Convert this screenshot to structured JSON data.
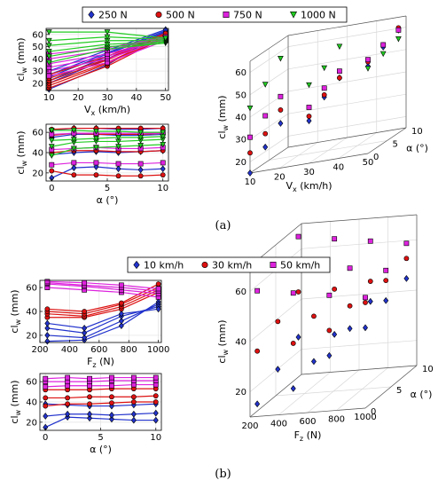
{
  "caption_a": "(a)",
  "caption_b": "(b)",
  "chart_data": [
    {
      "panel": "a",
      "chart": "clw-vs-Vx",
      "type": "line",
      "xlabel": "V_x (km/h)",
      "ylabel": "cl_w (mm)",
      "xlim": [
        9,
        51
      ],
      "ylim": [
        14,
        65
      ],
      "xticks": [
        10,
        20,
        30,
        40,
        50
      ],
      "yticks": [
        20,
        30,
        40,
        50,
        60
      ],
      "x": [
        10,
        30,
        50
      ],
      "legend": {
        "position": "top",
        "entries": [
          "250 N",
          "500 N",
          "750 N",
          "1000 N"
        ]
      },
      "series": [
        {
          "name": "250 N",
          "color": "#2233cc",
          "marker": "diamond",
          "lines": [
            [
              15,
              35,
              63
            ],
            [
              20,
              40,
              62
            ],
            [
              22,
              42,
              60
            ],
            [
              25,
              44,
              62
            ],
            [
              27,
              45,
              63
            ],
            [
              30,
              47,
              64
            ]
          ]
        },
        {
          "name": "500 N",
          "color": "#dd1111",
          "marker": "circle",
          "lines": [
            [
              16,
              34,
              58
            ],
            [
              18,
              36,
              58
            ],
            [
              20,
              37,
              59
            ],
            [
              22,
              39,
              60
            ],
            [
              24,
              40,
              60
            ],
            [
              27,
              42,
              61
            ]
          ]
        },
        {
          "name": "750 N",
          "color": "#dd22dd",
          "marker": "square",
          "lines": [
            [
              26,
              37,
              55
            ],
            [
              30,
              40,
              56
            ],
            [
              33,
              42,
              57
            ],
            [
              36,
              44,
              57
            ],
            [
              40,
              47,
              58
            ],
            [
              44,
              49,
              58
            ]
          ]
        },
        {
          "name": "1000 N",
          "color": "#22cc22",
          "marker": "triangle",
          "lines": [
            [
              37,
              48,
              53
            ],
            [
              42,
              50,
              53
            ],
            [
              46,
              52,
              54
            ],
            [
              51,
              55,
              55
            ],
            [
              55,
              58,
              56
            ],
            [
              62,
              62,
              57
            ]
          ]
        }
      ]
    },
    {
      "panel": "a",
      "chart": "clw-vs-alpha",
      "type": "line",
      "xlabel": "α (°)",
      "ylabel": "cl_w (mm)",
      "xlim": [
        -0.5,
        10.5
      ],
      "ylim": [
        12,
        68
      ],
      "xticks": [
        0,
        5,
        10
      ],
      "yticks": [
        20,
        40,
        60
      ],
      "x": [
        0,
        2,
        4,
        6,
        8,
        10
      ],
      "series": [
        {
          "name": "250 N",
          "color": "#2233cc",
          "marker": "diamond",
          "lines": [
            [
              15,
              25,
              26,
              24,
              23,
              24
            ],
            [
              38,
              40,
              41,
              40,
              41,
              42
            ],
            [
              55,
              58,
              58,
              57,
              57,
              58
            ],
            [
              62,
              64,
              64,
              63,
              63,
              64
            ]
          ]
        },
        {
          "name": "500 N",
          "color": "#dd1111",
          "marker": "circle",
          "lines": [
            [
              22,
              18,
              18,
              17,
              17,
              18
            ],
            [
              40,
              42,
              42,
              41,
              41,
              42
            ],
            [
              57,
              59,
              58,
              58,
              58,
              59
            ],
            [
              63,
              64,
              64,
              64,
              64,
              64
            ]
          ]
        },
        {
          "name": "750 N",
          "color": "#dd22dd",
          "marker": "square",
          "lines": [
            [
              28,
              30,
              30,
              29,
              29,
              30
            ],
            [
              43,
              44,
              45,
              44,
              44,
              45
            ],
            [
              58,
              59,
              59,
              59,
              59,
              59
            ]
          ]
        },
        {
          "name": "1000 N",
          "color": "#22cc22",
          "marker": "triangle",
          "lines": [
            [
              37,
              44,
              45,
              46,
              47,
              48
            ],
            [
              46,
              50,
              51,
              51,
              52,
              53
            ],
            [
              52,
              53,
              54,
              55,
              55,
              56
            ],
            [
              62,
              62,
              61,
              61,
              60,
              60
            ]
          ]
        }
      ]
    },
    {
      "panel": "a",
      "chart": "clw-3d-Vx-alpha",
      "type": "scatter",
      "xlabel": "V_x (km/h)",
      "ylabel": "α (°)",
      "zlabel": "cl_w (mm)",
      "xlim": [
        10,
        50
      ],
      "ylim": [
        0,
        10
      ],
      "zlim": [
        15,
        65
      ],
      "xticks": [
        10,
        20,
        30,
        40,
        50
      ],
      "yticks": [
        0,
        5,
        10
      ],
      "zticks": [
        20,
        30,
        40,
        50,
        60
      ],
      "series": [
        {
          "name": "250 N",
          "color": "#2233cc",
          "marker": "diamond",
          "points": [
            [
              10,
              0,
              15
            ],
            [
              10,
              4,
              22
            ],
            [
              10,
              8,
              28
            ],
            [
              30,
              0,
              34
            ],
            [
              30,
              4,
              40
            ],
            [
              30,
              8,
              44
            ],
            [
              50,
              0,
              54
            ],
            [
              50,
              4,
              58
            ],
            [
              50,
              8,
              61
            ]
          ]
        },
        {
          "name": "500 N",
          "color": "#dd1111",
          "marker": "circle",
          "points": [
            [
              10,
              0,
              24
            ],
            [
              10,
              4,
              28
            ],
            [
              10,
              8,
              34
            ],
            [
              30,
              0,
              36
            ],
            [
              30,
              4,
              41
            ],
            [
              30,
              8,
              44
            ],
            [
              50,
              0,
              56
            ],
            [
              50,
              4,
              59
            ],
            [
              50,
              8,
              62
            ]
          ]
        },
        {
          "name": "750 N",
          "color": "#dd22dd",
          "marker": "square",
          "points": [
            [
              10,
              0,
              31
            ],
            [
              10,
              4,
              36
            ],
            [
              10,
              8,
              40
            ],
            [
              30,
              0,
              40
            ],
            [
              30,
              4,
              44
            ],
            [
              30,
              8,
              47
            ],
            [
              50,
              0,
              57
            ],
            [
              50,
              4,
              59
            ],
            [
              50,
              8,
              61
            ]
          ]
        },
        {
          "name": "1000 N",
          "color": "#22cc22",
          "marker": "triangle",
          "points": [
            [
              10,
              0,
              44
            ],
            [
              10,
              4,
              50
            ],
            [
              10,
              8,
              57
            ],
            [
              30,
              0,
              50
            ],
            [
              30,
              4,
              53
            ],
            [
              30,
              8,
              58
            ],
            [
              50,
              0,
              53
            ],
            [
              50,
              4,
              55
            ],
            [
              50,
              8,
              57
            ]
          ]
        }
      ]
    },
    {
      "panel": "b",
      "chart": "clw-vs-Fz",
      "type": "line",
      "xlabel": "F_z (N)",
      "ylabel": "cl_w (mm)",
      "xlim": [
        200,
        1020
      ],
      "ylim": [
        14,
        66
      ],
      "xticks": [
        200,
        400,
        600,
        800,
        1000
      ],
      "yticks": [
        20,
        40,
        60
      ],
      "x": [
        250,
        500,
        750,
        1000
      ],
      "legend": {
        "position": "top",
        "entries": [
          "10 km/h",
          "30 km/h",
          "50 km/h"
        ]
      },
      "series": [
        {
          "name": "10 km/h",
          "color": "#2233cc",
          "marker": "diamond",
          "lines": [
            [
              15,
              16,
              28,
              48
            ],
            [
              20,
              18,
              32,
              46
            ],
            [
              26,
              22,
              36,
              44
            ],
            [
              30,
              26,
              38,
              42
            ]
          ]
        },
        {
          "name": "30 km/h",
          "color": "#dd1111",
          "marker": "circle",
          "lines": [
            [
              35,
              35,
              42,
              56
            ],
            [
              38,
              36,
              44,
              58
            ],
            [
              40,
              38,
              46,
              60
            ],
            [
              42,
              40,
              47,
              63
            ]
          ]
        },
        {
          "name": "50 km/h",
          "color": "#dd22dd",
          "marker": "square",
          "lines": [
            [
              60,
              58,
              56,
              52
            ],
            [
              63,
              61,
              58,
              55
            ],
            [
              64,
              62,
              60,
              57
            ],
            [
              65,
              64,
              62,
              59
            ]
          ]
        }
      ]
    },
    {
      "panel": "b",
      "chart": "clw-vs-alpha",
      "type": "line",
      "xlabel": "α (°)",
      "ylabel": "cl_w (mm)",
      "xlim": [
        -0.5,
        10.5
      ],
      "ylim": [
        12,
        68
      ],
      "xticks": [
        0,
        5,
        10
      ],
      "yticks": [
        20,
        40,
        60
      ],
      "x": [
        0,
        2,
        4,
        6,
        8,
        10
      ],
      "series": [
        {
          "name": "10 km/h",
          "color": "#2233cc",
          "marker": "diamond",
          "lines": [
            [
              15,
              25,
              24,
              23,
              22,
              22
            ],
            [
              26,
              28,
              28,
              27,
              28,
              29
            ],
            [
              38,
              37,
              36,
              36,
              37,
              38
            ]
          ]
        },
        {
          "name": "30 km/h",
          "color": "#dd1111",
          "marker": "circle",
          "lines": [
            [
              36,
              38,
              38,
              39,
              40,
              40
            ],
            [
              44,
              44,
              45,
              45,
              45,
              46
            ],
            [
              52,
              52,
              52,
              53,
              53,
              53
            ]
          ]
        },
        {
          "name": "50 km/h",
          "color": "#dd22dd",
          "marker": "square",
          "lines": [
            [
              55,
              56,
              56,
              56,
              57,
              57
            ],
            [
              60,
              60,
              60,
              61,
              61,
              61
            ],
            [
              63,
              64,
              63,
              64,
              64,
              64
            ]
          ]
        }
      ]
    },
    {
      "panel": "b",
      "chart": "clw-3d-Fz-alpha",
      "type": "scatter",
      "xlabel": "F_z (N)",
      "ylabel": "α (°)",
      "zlabel": "cl_w (mm)",
      "xlim": [
        200,
        1000
      ],
      "ylim": [
        0,
        10
      ],
      "zlim": [
        10,
        70
      ],
      "xticks": [
        200,
        400,
        600,
        800,
        1000
      ],
      "yticks": [
        0,
        5,
        10
      ],
      "zticks": [
        20,
        40,
        60
      ],
      "series": [
        {
          "name": "10 km/h",
          "color": "#2233cc",
          "marker": "diamond",
          "points": [
            [
              250,
              0,
              15
            ],
            [
              250,
              4,
              22
            ],
            [
              250,
              8,
              28
            ],
            [
              500,
              0,
              20
            ],
            [
              500,
              4,
              24
            ],
            [
              500,
              8,
              28
            ],
            [
              750,
              0,
              32
            ],
            [
              750,
              4,
              36
            ],
            [
              750,
              8,
              40
            ],
            [
              1000,
              0,
              42
            ],
            [
              1000,
              4,
              46
            ],
            [
              1000,
              8,
              48
            ]
          ]
        },
        {
          "name": "30 km/h",
          "color": "#dd1111",
          "marker": "circle",
          "points": [
            [
              250,
              0,
              36
            ],
            [
              250,
              4,
              41
            ],
            [
              250,
              8,
              46
            ],
            [
              500,
              0,
              38
            ],
            [
              500,
              4,
              42
            ],
            [
              500,
              8,
              46
            ],
            [
              750,
              0,
              42
            ],
            [
              750,
              4,
              45
            ],
            [
              750,
              8,
              48
            ],
            [
              1000,
              0,
              52
            ],
            [
              1000,
              4,
              54
            ],
            [
              1000,
              8,
              56
            ]
          ]
        },
        {
          "name": "50 km/h",
          "color": "#dd22dd",
          "marker": "square",
          "points": [
            [
              250,
              0,
              60
            ],
            [
              250,
              4,
              64
            ],
            [
              250,
              8,
              68
            ],
            [
              500,
              0,
              58
            ],
            [
              500,
              4,
              62
            ],
            [
              500,
              8,
              66
            ],
            [
              750,
              0,
              56
            ],
            [
              750,
              4,
              60
            ],
            [
              750,
              8,
              64
            ],
            [
              1000,
              0,
              54
            ],
            [
              1000,
              4,
              58
            ],
            [
              1000,
              8,
              62
            ]
          ]
        }
      ]
    }
  ]
}
